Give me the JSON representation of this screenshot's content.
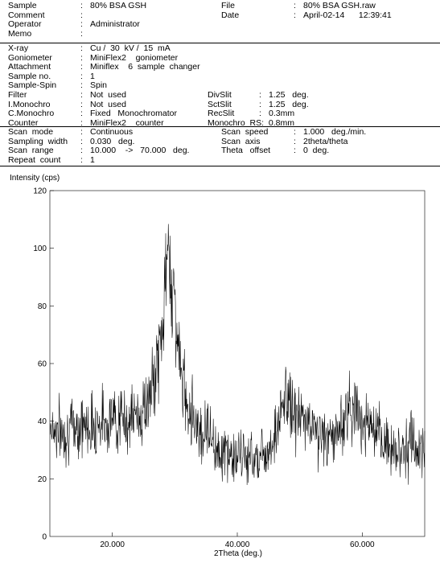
{
  "header": {
    "rows_block1": [
      {
        "label": "Sample",
        "value": "80% BSA GSH",
        "label2": "File",
        "value2": "80% BSA GSH.raw"
      },
      {
        "label": "Comment",
        "value": "",
        "label2": "Date",
        "value2": "April-02-14      12:39:41"
      },
      {
        "label": "Operator",
        "value": "Administrator",
        "label2": "",
        "value2": ""
      },
      {
        "label": "Memo",
        "value": "",
        "label2": "",
        "value2": ""
      }
    ],
    "rows_block2": [
      {
        "label": "X-ray",
        "value": "Cu /  30  kV /  15  mA",
        "label2": "",
        "value2": ""
      },
      {
        "label": "Goniometer",
        "value": "MiniFlex2    goniometer",
        "label2": "",
        "value2": ""
      },
      {
        "label": "Attachment",
        "value": "Miniflex    6  sample  changer",
        "label2": "",
        "value2": ""
      },
      {
        "label": "Sample no.",
        "value": "1",
        "label2": "",
        "value2": ""
      },
      {
        "label": "Sample-Spin",
        "value": "Spin",
        "label2": "",
        "value2": ""
      },
      {
        "label": "Filter",
        "value": "Not  used",
        "label2": "DivSlit",
        "value2": "1.25   deg."
      },
      {
        "label": "I.Monochro",
        "value": "Not  used",
        "label2": "SctSlit",
        "value2": "1.25   deg."
      },
      {
        "label": "C.Monochro",
        "value": "Fixed   Monochromator",
        "label2": "RecSlit",
        "value2": "0.3mm"
      },
      {
        "label": "Counter",
        "value": "MiniFlex2    counter",
        "label2": "Monochro  RS:  0.8mm",
        "value2": ""
      }
    ],
    "rows_block3": [
      {
        "label": "Scan  mode",
        "value": "Continuous",
        "label2": "Scan  speed",
        "value2": "1.000   deg./min."
      },
      {
        "label": "Sampling  width",
        "value": "0.030   deg.",
        "label2": "Scan  axis",
        "value2": "2theta/theta"
      },
      {
        "label": "Scan  range",
        "value": "10.000    ->   70.000   deg.",
        "label2": "Theta   offset",
        "value2": "0  deg."
      },
      {
        "label": "Repeat  count",
        "value": "1",
        "label2": "",
        "value2": ""
      }
    ],
    "colon": ":"
  },
  "chart_data": {
    "type": "line",
    "ylabel": "Intensity (cps)",
    "xlabel": "2Theta (deg.)",
    "xlim": [
      10,
      70
    ],
    "ylim": [
      0,
      120
    ],
    "xticks": [
      20,
      40,
      60
    ],
    "xtick_labels": [
      "20.000",
      "40.000",
      "60.000"
    ],
    "yticks": [
      20,
      40,
      60,
      80,
      100,
      120
    ],
    "ytick_labels": [
      "20",
      "40",
      "60",
      "80",
      "100",
      "120"
    ],
    "series": [
      {
        "color": "#000000",
        "x": [
          10,
          11,
          12,
          13,
          14,
          15,
          16,
          17,
          18,
          19,
          20,
          21,
          22,
          23,
          24,
          25,
          26,
          26.5,
          27,
          27.5,
          28,
          28.3,
          28.6,
          28.9,
          29.2,
          29.5,
          29.8,
          30.2,
          30.6,
          31,
          32,
          33,
          34,
          34.8,
          35.2,
          35.6,
          36,
          36.5,
          37,
          38,
          39,
          40,
          41,
          42,
          43,
          44,
          45,
          46,
          46.8,
          47.4,
          47.8,
          48.3,
          48.8,
          49.5,
          50,
          51,
          52,
          53,
          54,
          55,
          56,
          57,
          57.5,
          58,
          58.5,
          59,
          60,
          61,
          62,
          63,
          64,
          65,
          66,
          67,
          68,
          69,
          70
        ],
        "y": [
          39,
          37,
          36,
          37,
          38,
          39,
          38,
          39,
          40,
          40,
          41,
          41,
          40,
          41,
          42,
          43,
          48,
          52,
          58,
          64,
          72,
          82,
          90,
          100,
          95,
          88,
          84,
          75,
          65,
          55,
          47,
          42,
          37,
          35,
          41,
          36,
          33,
          31,
          30,
          29,
          28,
          27,
          28,
          27,
          28,
          29,
          31,
          35,
          40,
          46,
          49,
          47,
          44,
          42,
          41,
          40,
          38,
          36,
          34,
          34,
          36,
          40,
          43,
          46,
          45,
          43,
          41,
          39,
          35,
          33,
          32,
          31,
          30,
          31,
          32,
          30,
          29
        ]
      }
    ]
  }
}
